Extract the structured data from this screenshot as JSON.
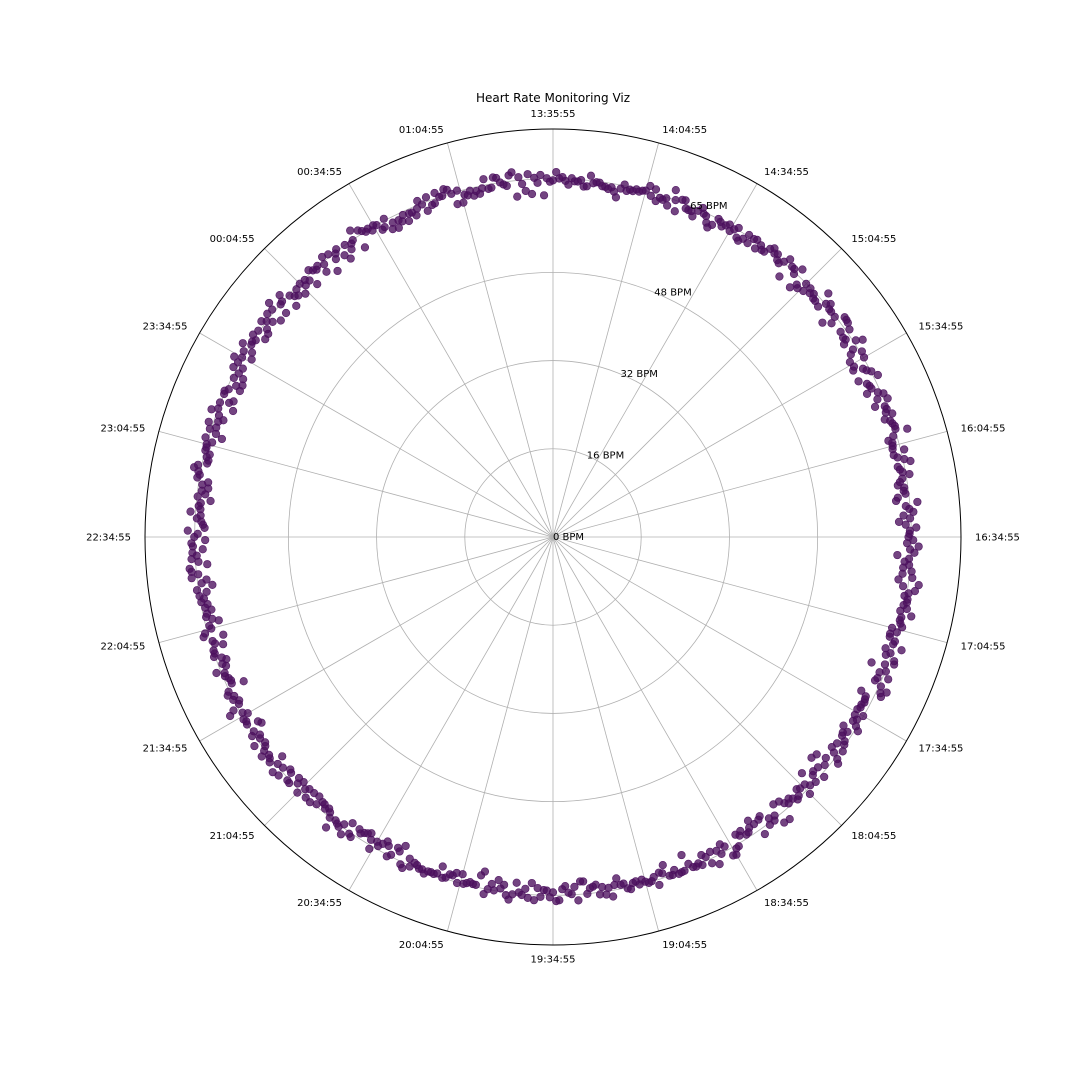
{
  "chart_data": {
    "type": "scatter",
    "projection": "polar",
    "title": "Heart Rate Monitoring Viz",
    "angular_tick_labels": [
      "13:35:55",
      "14:04:55",
      "14:34:55",
      "15:04:55",
      "15:34:55",
      "16:04:55",
      "16:34:55",
      "17:04:55",
      "17:34:55",
      "18:04:55",
      "18:34:55",
      "19:04:55",
      "19:34:55",
      "20:04:55",
      "20:34:55",
      "21:04:55",
      "21:34:55",
      "22:04:55",
      "22:34:55",
      "23:04:55",
      "23:34:55",
      "00:04:55",
      "00:34:55",
      "01:04:55"
    ],
    "angular_direction": "clockwise",
    "angular_zero_location": "top",
    "radial_tick_values": [
      0,
      16,
      32,
      48,
      65
    ],
    "radial_tick_labels": [
      "0 BPM",
      "16 BPM",
      "32 BPM",
      "48 BPM",
      "65 BPM"
    ],
    "rlim": [
      0,
      74
    ],
    "grid": true,
    "series_color": "#4b0f5e",
    "approx_point_count": 720,
    "points": {
      "description_of_units": "theta in degrees clockwise from top (0 = 13:35:55), r in BPM",
      "theta_start": 0,
      "theta_step": 0.5,
      "count": 720,
      "r_base": 64.5,
      "r_variation": [
        -3.0,
        3.0
      ]
    }
  }
}
